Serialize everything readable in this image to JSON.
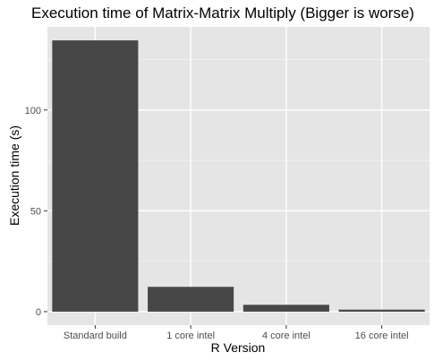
{
  "chart_data": {
    "type": "bar",
    "title": "Execution time of Matrix-Matrix Multiply (Bigger is worse)",
    "xlabel": "R Version",
    "ylabel": "Execution time (s)",
    "categories": [
      "Standard build",
      "1 core intel",
      "4 core intel",
      "16 core intel"
    ],
    "values": [
      134.5,
      12.3,
      3.4,
      1.0
    ],
    "ylim": [
      -6.7,
      141.2
    ],
    "yticks": [
      0,
      50,
      100
    ],
    "grid": true,
    "colors": {
      "panel_background": "#e5e5e5",
      "grid_major": "#ffffff",
      "grid_minor": "#f2f2f2",
      "bar_fill": "#474747"
    }
  }
}
